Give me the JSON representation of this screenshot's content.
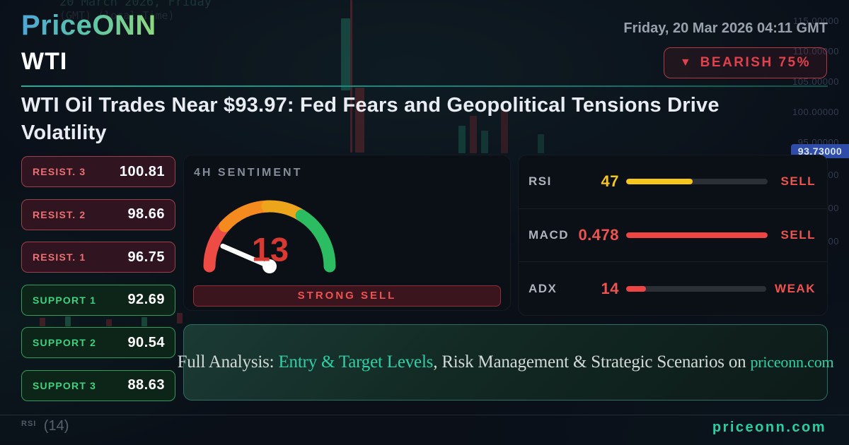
{
  "header": {
    "logo": "PriceONN",
    "symbol": "WTI",
    "datetime": "Friday, 20 Mar 2026 04:11 GMT",
    "badge": {
      "icon": "▼",
      "label": "BEARISH 75%"
    }
  },
  "headline": "WTI Oil Trades Near $93.97: Fed Fears and Geopolitical Tensions Drive Volatility",
  "levels": [
    {
      "type": "resistance",
      "label": "RESIST. 3",
      "value": "100.81"
    },
    {
      "type": "resistance",
      "label": "RESIST. 2",
      "value": "98.66"
    },
    {
      "type": "resistance",
      "label": "RESIST. 1",
      "value": "96.75"
    },
    {
      "type": "support",
      "label": "SUPPORT 1",
      "value": "92.69"
    },
    {
      "type": "support",
      "label": "SUPPORT 2",
      "value": "90.54"
    },
    {
      "type": "support",
      "label": "SUPPORT 3",
      "value": "88.63"
    }
  ],
  "sentiment": {
    "title": "4H SENTIMENT",
    "value": 13,
    "max": 100,
    "signal": "STRONG SELL",
    "arc_colors": {
      "red": "#ee4b45",
      "orange": "#f58a1f",
      "amber": "#eda61c",
      "green": "#2cbd62"
    }
  },
  "indicators": [
    {
      "label": "RSI",
      "value": "47",
      "percent": 47,
      "signal": "SELL",
      "value_color": "#f5c61b",
      "bar_color": "#f5c61b",
      "signal_color": "#ef5350"
    },
    {
      "label": "MACD",
      "value": "0.478",
      "percent": 100,
      "signal": "SELL",
      "value_color": "#ef5350",
      "bar_color": "#ef4444",
      "signal_color": "#ef5350"
    },
    {
      "label": "ADX",
      "value": "14",
      "percent": 14,
      "signal": "WEAK",
      "value_color": "#ef5350",
      "bar_color": "#ef4444",
      "signal_color": "#ef5350"
    }
  ],
  "banner": {
    "prefix": "Full Analysis: ",
    "link": "Entry & Target Levels",
    "middle": ", Risk Management & Strategic Scenarios on ",
    "site": "priceonn.com"
  },
  "footer": {
    "site": "priceonn.com"
  },
  "background": {
    "watermark_line1": "20 March 2026, Friday",
    "watermark_line2": "(GMT) (local Time)",
    "price_labels": [
      "115.00000",
      "110.00000",
      "105.00000",
      "100.00000",
      "95.00000",
      "90.00000",
      "85.00000",
      "80.00000"
    ],
    "price_tag": "93.73000",
    "rsi_pane_label": "RSI",
    "rsi_pane_period": "(14)"
  },
  "colors": {
    "accent_teal": "#2dd4a8",
    "bearish_red": "#ef4444",
    "bullish_green": "#22c55e",
    "warning_yellow": "#f5c61b"
  }
}
